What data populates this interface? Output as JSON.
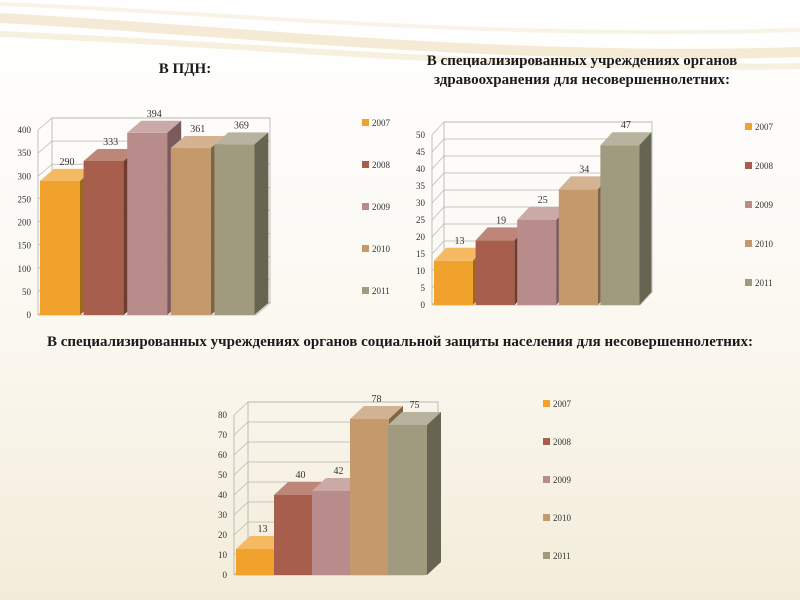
{
  "headings": {
    "pdn": "В ПДН:",
    "health": "В специализированных учреждениях органов здравоохранения для несовершеннолетних:",
    "social": "В специализированных учреждениях органов социальной защиты населения для несовершеннолетних:"
  },
  "series_colors": [
    "#f0a22c",
    "#a85e4c",
    "#b88c8a",
    "#c49a6c",
    "#a09a7e"
  ],
  "chart_data": [
    {
      "type": "bar",
      "title": "В ПДН:",
      "categories": [
        "2007",
        "2008",
        "2009",
        "2010",
        "2011"
      ],
      "values": [
        290,
        333,
        394,
        361,
        369
      ],
      "ylim": [
        0,
        400
      ],
      "yticks": [
        0,
        50,
        100,
        150,
        200,
        250,
        300,
        350,
        400
      ],
      "legend": "right",
      "grid": true
    },
    {
      "type": "bar",
      "title": "В специализированных учреждениях органов здравоохранения для несовершеннолетних:",
      "categories": [
        "2007",
        "2008",
        "2009",
        "2010",
        "2011"
      ],
      "values": [
        13,
        19,
        25,
        34,
        47
      ],
      "ylim": [
        0,
        50
      ],
      "yticks": [
        0,
        5,
        10,
        15,
        20,
        25,
        30,
        35,
        40,
        45,
        50
      ],
      "legend": "right",
      "grid": true
    },
    {
      "type": "bar",
      "title": "В специализированных учреждениях органов социальной защиты населения для несовершеннолетних:",
      "categories": [
        "2007",
        "2008",
        "2009",
        "2010",
        "2011"
      ],
      "values": [
        13,
        40,
        42,
        78,
        75
      ],
      "ylim": [
        0,
        80
      ],
      "yticks": [
        0,
        10,
        20,
        30,
        40,
        50,
        60,
        70,
        80
      ],
      "legend": "right",
      "grid": true
    }
  ]
}
